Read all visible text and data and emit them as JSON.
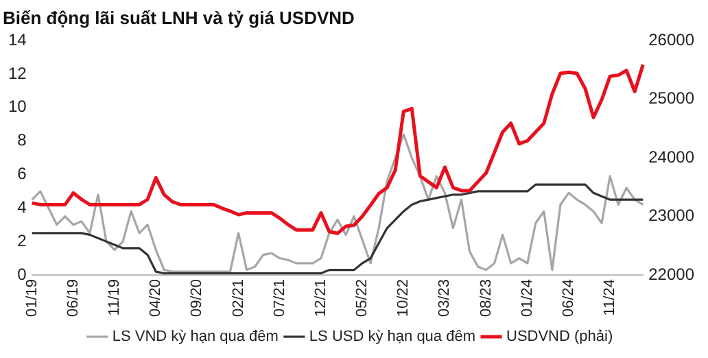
{
  "chart_data": {
    "type": "line",
    "title": "Biến động lãi suất LNH và tỷ giá USDVND",
    "categories": [
      "01/19",
      null,
      null,
      null,
      null,
      "06/19",
      null,
      null,
      null,
      null,
      "11/19",
      null,
      null,
      null,
      null,
      "04/20",
      null,
      null,
      null,
      null,
      "09/20",
      null,
      null,
      null,
      null,
      "02/21",
      null,
      null,
      null,
      null,
      "07/21",
      null,
      null,
      null,
      null,
      "12/21",
      null,
      null,
      null,
      null,
      "05/22",
      null,
      null,
      null,
      null,
      "10/22",
      null,
      null,
      null,
      null,
      "03/23",
      null,
      null,
      null,
      null,
      "08/23",
      null,
      null,
      null,
      null,
      "01/24",
      null,
      null,
      null,
      null,
      "06/24",
      null,
      null,
      null,
      null,
      "11/24",
      null,
      null,
      null,
      null
    ],
    "series": [
      {
        "name": "LS VND kỳ hạn qua đêm",
        "color": "#a6a6a6",
        "values": [
          4.5,
          5.0,
          4.0,
          3.0,
          3.5,
          3.0,
          3.2,
          2.5,
          4.8,
          2.0,
          1.5,
          2.0,
          3.8,
          2.5,
          3.0,
          1.5,
          0.3,
          0.2,
          0.2,
          0.2,
          0.2,
          0.2,
          0.2,
          0.2,
          0.2,
          2.5,
          0.3,
          0.5,
          1.2,
          1.3,
          1.0,
          0.9,
          0.7,
          0.7,
          0.7,
          1.0,
          2.5,
          3.3,
          2.4,
          3.5,
          2.1,
          0.7,
          2.8,
          5.6,
          7.0,
          8.4,
          7.0,
          5.9,
          4.5,
          5.9,
          4.9,
          2.8,
          4.5,
          1.4,
          0.5,
          0.3,
          0.7,
          2.4,
          0.7,
          1.0,
          0.7,
          3.1,
          3.8,
          0.3,
          4.2,
          4.9,
          4.5,
          4.2,
          3.8,
          3.1,
          5.9,
          4.2,
          5.2,
          4.5,
          4.2
        ]
      },
      {
        "name": "LS USD kỳ hạn qua đêm",
        "color": "#333333",
        "values": [
          2.5,
          2.5,
          2.5,
          2.5,
          2.5,
          2.5,
          2.5,
          2.4,
          2.2,
          2.0,
          1.8,
          1.6,
          1.6,
          1.6,
          1.2,
          0.2,
          0.1,
          0.1,
          0.1,
          0.1,
          0.1,
          0.1,
          0.1,
          0.1,
          0.1,
          0.1,
          0.1,
          0.1,
          0.1,
          0.1,
          0.1,
          0.1,
          0.1,
          0.1,
          0.1,
          0.1,
          0.3,
          0.3,
          0.3,
          0.3,
          0.7,
          1.0,
          1.9,
          2.8,
          3.3,
          3.8,
          4.2,
          4.4,
          4.5,
          4.6,
          4.7,
          4.8,
          4.8,
          4.9,
          5.0,
          5.0,
          5.0,
          5.0,
          5.0,
          5.0,
          5.0,
          5.4,
          5.4,
          5.4,
          5.4,
          5.4,
          5.4,
          5.4,
          4.9,
          4.7,
          4.5,
          4.5,
          4.5,
          4.5,
          4.5
        ]
      },
      {
        "name": "USDVND (phải)",
        "color": "#e8101e",
        "axis": "y2",
        "values": [
          23230,
          23200,
          23200,
          23200,
          23200,
          23400,
          23290,
          23200,
          23200,
          23200,
          23200,
          23200,
          23200,
          23200,
          23290,
          23660,
          23370,
          23250,
          23200,
          23200,
          23200,
          23200,
          23200,
          23140,
          23090,
          23030,
          23060,
          23060,
          23060,
          23060,
          22970,
          22860,
          22770,
          22770,
          22770,
          23060,
          22740,
          22710,
          22830,
          22850,
          23000,
          23190,
          23390,
          23490,
          23790,
          24790,
          24840,
          23690,
          23590,
          23490,
          23840,
          23490,
          23440,
          23440,
          23590,
          23740,
          24090,
          24440,
          24590,
          24240,
          24290,
          24440,
          24590,
          25090,
          25440,
          25460,
          25440,
          25180,
          24690,
          24990,
          25390,
          25410,
          25490,
          25130,
          25590
        ]
      }
    ],
    "ylim": [
      0,
      14
    ],
    "yticks": [
      0,
      2,
      4,
      6,
      8,
      10,
      12,
      14
    ],
    "y2lim": [
      22000,
      26000
    ],
    "y2ticks": [
      22000,
      23000,
      24000,
      25000,
      26000
    ],
    "grid": false,
    "legend": "bottom",
    "marker": "none",
    "line_style": "solid"
  }
}
